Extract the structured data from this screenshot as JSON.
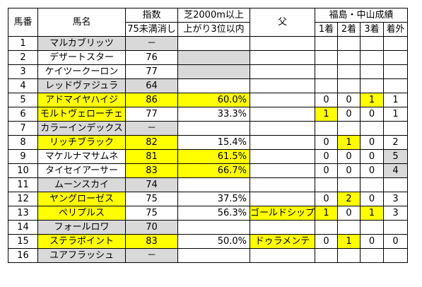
{
  "headers": {
    "num": "馬番",
    "name": "馬名",
    "index_line1": "指数",
    "index_line2": "75未満消し",
    "turf_line1": "芝2000m以上",
    "turf_line2": "上がり3位以内",
    "sire": "父",
    "results_group": "福島・中山成績",
    "first": "1着",
    "second": "2着",
    "third": "3着",
    "out": "着外"
  },
  "rows": [
    {
      "num": "1",
      "name": "マルカブリッツ",
      "index": "－",
      "pct": "",
      "sire": "",
      "r1": "",
      "r2": "",
      "r3": "",
      "rx": "",
      "hl": {
        "name": "gray",
        "index": "gray",
        "pct": "",
        "sire": "",
        "r1": "",
        "r2": "",
        "r3": "",
        "rx": ""
      }
    },
    {
      "num": "2",
      "name": "デザートスター",
      "index": "76",
      "pct": "",
      "sire": "",
      "r1": "",
      "r2": "",
      "r3": "",
      "rx": "",
      "hl": {
        "name": "",
        "index": "",
        "pct": "gray",
        "sire": "",
        "r1": "",
        "r2": "",
        "r3": "",
        "rx": ""
      }
    },
    {
      "num": "3",
      "name": "ケイツークーロン",
      "index": "77",
      "pct": "",
      "sire": "",
      "r1": "",
      "r2": "",
      "r3": "",
      "rx": "",
      "hl": {
        "name": "",
        "index": "",
        "pct": "gray",
        "sire": "",
        "r1": "",
        "r2": "",
        "r3": "",
        "rx": ""
      }
    },
    {
      "num": "4",
      "name": "レッドヴァジュラ",
      "index": "64",
      "pct": "",
      "sire": "",
      "r1": "",
      "r2": "",
      "r3": "",
      "rx": "",
      "hl": {
        "name": "gray",
        "index": "gray",
        "pct": "",
        "sire": "",
        "r1": "",
        "r2": "",
        "r3": "",
        "rx": ""
      }
    },
    {
      "num": "5",
      "name": "アドマイヤハイジ",
      "index": "86",
      "pct": "60.0%",
      "sire": "",
      "r1": "0",
      "r2": "0",
      "r3": "1",
      "rx": "1",
      "hl": {
        "name": "yellow",
        "index": "yellow",
        "pct": "yellow",
        "sire": "",
        "r1": "",
        "r2": "",
        "r3": "yellow",
        "rx": ""
      }
    },
    {
      "num": "6",
      "name": "モルトヴェローチェ",
      "index": "77",
      "pct": "33.3%",
      "sire": "",
      "r1": "1",
      "r2": "0",
      "r3": "0",
      "rx": "1",
      "hl": {
        "name": "yellow",
        "index": "",
        "pct": "",
        "sire": "",
        "r1": "yellow",
        "r2": "",
        "r3": "",
        "rx": ""
      }
    },
    {
      "num": "7",
      "name": "カラーインデックス",
      "index": "－",
      "pct": "",
      "sire": "",
      "r1": "",
      "r2": "",
      "r3": "",
      "rx": "",
      "hl": {
        "name": "gray",
        "index": "gray",
        "pct": "",
        "sire": "",
        "r1": "",
        "r2": "",
        "r3": "",
        "rx": ""
      }
    },
    {
      "num": "8",
      "name": "リッチブラック",
      "index": "82",
      "pct": "15.4%",
      "sire": "",
      "r1": "0",
      "r2": "1",
      "r3": "0",
      "rx": "2",
      "hl": {
        "name": "yellow",
        "index": "yellow",
        "pct": "",
        "sire": "",
        "r1": "",
        "r2": "yellow",
        "r3": "",
        "rx": ""
      }
    },
    {
      "num": "9",
      "name": "マケルナマサムネ",
      "index": "81",
      "pct": "61.5%",
      "sire": "",
      "r1": "0",
      "r2": "0",
      "r3": "0",
      "rx": "5",
      "hl": {
        "name": "",
        "index": "yellow",
        "pct": "yellow",
        "sire": "",
        "r1": "",
        "r2": "",
        "r3": "",
        "rx": "gray"
      }
    },
    {
      "num": "10",
      "name": "タイセイアーサー",
      "index": "83",
      "pct": "66.7%",
      "sire": "",
      "r1": "0",
      "r2": "0",
      "r3": "0",
      "rx": "4",
      "hl": {
        "name": "",
        "index": "yellow",
        "pct": "yellow",
        "sire": "",
        "r1": "",
        "r2": "",
        "r3": "",
        "rx": "gray"
      }
    },
    {
      "num": "11",
      "name": "ムーンスカイ",
      "index": "74",
      "pct": "",
      "sire": "",
      "r1": "",
      "r2": "",
      "r3": "",
      "rx": "",
      "hl": {
        "name": "gray",
        "index": "gray",
        "pct": "",
        "sire": "",
        "r1": "",
        "r2": "",
        "r3": "",
        "rx": ""
      }
    },
    {
      "num": "12",
      "name": "ヤングローゼス",
      "index": "75",
      "pct": "37.5%",
      "sire": "",
      "r1": "0",
      "r2": "2",
      "r3": "0",
      "rx": "3",
      "hl": {
        "name": "yellow",
        "index": "",
        "pct": "",
        "sire": "",
        "r1": "",
        "r2": "yellow",
        "r3": "",
        "rx": ""
      }
    },
    {
      "num": "13",
      "name": "ペリプルス",
      "index": "75",
      "pct": "56.3%",
      "sire": "ゴールドシップ",
      "r1": "1",
      "r2": "0",
      "r3": "1",
      "rx": "3",
      "hl": {
        "name": "yellow",
        "index": "",
        "pct": "",
        "sire": "yellow",
        "r1": "yellow",
        "r2": "",
        "r3": "yellow",
        "rx": ""
      }
    },
    {
      "num": "14",
      "name": "フォールロワ",
      "index": "70",
      "pct": "",
      "sire": "",
      "r1": "",
      "r2": "",
      "r3": "",
      "rx": "",
      "hl": {
        "name": "gray",
        "index": "gray",
        "pct": "",
        "sire": "",
        "r1": "",
        "r2": "",
        "r3": "",
        "rx": ""
      }
    },
    {
      "num": "15",
      "name": "ステラポイント",
      "index": "83",
      "pct": "50.0%",
      "sire": "ドゥラメンテ",
      "r1": "0",
      "r2": "1",
      "r3": "0",
      "rx": "0",
      "hl": {
        "name": "yellow",
        "index": "yellow",
        "pct": "",
        "sire": "yellow",
        "r1": "",
        "r2": "yellow",
        "r3": "",
        "rx": ""
      }
    },
    {
      "num": "16",
      "name": "ユアフラッシュ",
      "index": "－",
      "pct": "",
      "sire": "",
      "r1": "",
      "r2": "",
      "r3": "",
      "rx": "",
      "hl": {
        "name": "gray",
        "index": "gray",
        "pct": "",
        "sire": "",
        "r1": "",
        "r2": "",
        "r3": "",
        "rx": ""
      }
    }
  ],
  "colors": {
    "yellow": "#ffff00",
    "gray": "#d9d9d9",
    "border": "#000000"
  }
}
